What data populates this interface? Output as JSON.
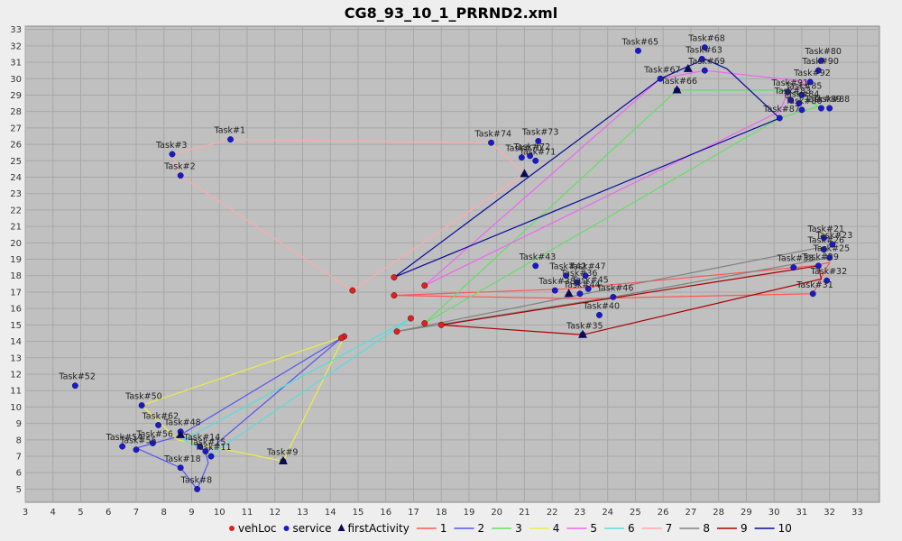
{
  "chart_data": {
    "type": "scatter",
    "title": "CG8_93_10_1_PRRND2.xml",
    "xlim": [
      3,
      33.8
    ],
    "ylim": [
      4.2,
      33.2
    ],
    "xticks": [
      3,
      4,
      5,
      6,
      7,
      8,
      9,
      10,
      11,
      12,
      13,
      14,
      15,
      16,
      17,
      18,
      19,
      20,
      21,
      22,
      23,
      24,
      25,
      26,
      27,
      28,
      29,
      30,
      31,
      32,
      33
    ],
    "yticks": [
      5,
      6,
      7,
      8,
      9,
      10,
      11,
      12,
      13,
      14,
      15,
      16,
      17,
      18,
      19,
      20,
      21,
      22,
      23,
      24,
      25,
      26,
      27,
      28,
      29,
      30,
      31,
      32,
      33
    ],
    "grid": true,
    "legend_position": "bottom",
    "legend": [
      {
        "name": "vehLoc",
        "kind": "dot",
        "color": "#dd2222"
      },
      {
        "name": "service",
        "kind": "dot",
        "color": "#1a1acc"
      },
      {
        "name": "firstActivity",
        "kind": "triangle",
        "color": "#0a0a55"
      },
      {
        "name": "1",
        "kind": "line",
        "color": "#ff5555"
      },
      {
        "name": "2",
        "kind": "line",
        "color": "#5555ee"
      },
      {
        "name": "3",
        "kind": "line",
        "color": "#66dd66"
      },
      {
        "name": "4",
        "kind": "line",
        "color": "#eeee44"
      },
      {
        "name": "5",
        "kind": "line",
        "color": "#ee66ee"
      },
      {
        "name": "6",
        "kind": "line",
        "color": "#55dddd"
      },
      {
        "name": "7",
        "kind": "line",
        "color": "#ffaaaa"
      },
      {
        "name": "8",
        "kind": "line",
        "color": "#808080"
      },
      {
        "name": "9",
        "kind": "line",
        "color": "#aa0000"
      },
      {
        "name": "10",
        "kind": "line",
        "color": "#0a0a99"
      }
    ],
    "vehicle_locations": [
      [
        14.8,
        17.1
      ],
      [
        16.3,
        17.9
      ],
      [
        16.3,
        16.8
      ],
      [
        17.4,
        17.4
      ],
      [
        16.9,
        15.4
      ],
      [
        17.4,
        15.1
      ],
      [
        18.0,
        15.0
      ],
      [
        16.4,
        14.6
      ],
      [
        14.5,
        14.3
      ],
      [
        14.4,
        14.2
      ]
    ],
    "first_activities": [
      [
        21.0,
        24.2
      ],
      [
        26.9,
        30.6
      ],
      [
        26.5,
        29.3
      ],
      [
        22.6,
        16.9
      ],
      [
        23.1,
        14.4
      ],
      [
        8.6,
        8.3
      ],
      [
        12.3,
        6.7
      ]
    ],
    "service_points": [
      {
        "label": "Task#1",
        "x": 10.4,
        "y": 26.3
      },
      {
        "label": "Task#3",
        "x": 8.3,
        "y": 25.4
      },
      {
        "label": "Task#2",
        "x": 8.6,
        "y": 24.1
      },
      {
        "label": "Task#74",
        "x": 19.8,
        "y": 26.1
      },
      {
        "label": "Task#73",
        "x": 21.5,
        "y": 26.2
      },
      {
        "label": "Task#72",
        "x": 21.2,
        "y": 25.3
      },
      {
        "label": "Task#71",
        "x": 21.4,
        "y": 25.0
      },
      {
        "label": "Task#70",
        "x": 20.9,
        "y": 25.2
      },
      {
        "label": "Task#65",
        "x": 25.1,
        "y": 31.7
      },
      {
        "label": "Task#68",
        "x": 27.5,
        "y": 31.9
      },
      {
        "label": "Task#63",
        "x": 27.4,
        "y": 31.2
      },
      {
        "label": "Task#69",
        "x": 27.5,
        "y": 30.5
      },
      {
        "label": "Task#67",
        "x": 25.9,
        "y": 30.0
      },
      {
        "label": "Task#66",
        "x": 26.5,
        "y": 29.3
      },
      {
        "label": "Task#80",
        "x": 31.7,
        "y": 31.1
      },
      {
        "label": "Task#90",
        "x": 31.6,
        "y": 30.5
      },
      {
        "label": "Task#92",
        "x": 31.3,
        "y": 29.8
      },
      {
        "label": "Task#91",
        "x": 30.5,
        "y": 29.2
      },
      {
        "label": "Task#85",
        "x": 31.0,
        "y": 29.0
      },
      {
        "label": "Task#83",
        "x": 30.6,
        "y": 28.7
      },
      {
        "label": "Task#84",
        "x": 30.9,
        "y": 28.5
      },
      {
        "label": "Task#88",
        "x": 32.0,
        "y": 28.2
      },
      {
        "label": "Task#89",
        "x": 31.7,
        "y": 28.2
      },
      {
        "label": "Task#86",
        "x": 31.0,
        "y": 28.1
      },
      {
        "label": "Task#87",
        "x": 30.2,
        "y": 27.6
      },
      {
        "label": "Task#43",
        "x": 21.4,
        "y": 18.6
      },
      {
        "label": "Task#42",
        "x": 22.5,
        "y": 18.0
      },
      {
        "label": "Task#47",
        "x": 23.2,
        "y": 18.0
      },
      {
        "label": "Task#36",
        "x": 22.9,
        "y": 17.6
      },
      {
        "label": "Task#45",
        "x": 23.3,
        "y": 17.2
      },
      {
        "label": "Task#38",
        "x": 22.1,
        "y": 17.1
      },
      {
        "label": "Task#44",
        "x": 23.0,
        "y": 16.9
      },
      {
        "label": "Task#46",
        "x": 24.2,
        "y": 16.7
      },
      {
        "label": "Task#40",
        "x": 23.7,
        "y": 15.6
      },
      {
        "label": "Task#35",
        "x": 23.1,
        "y": 14.4
      },
      {
        "label": "Task#21",
        "x": 31.8,
        "y": 20.3
      },
      {
        "label": "Task#23",
        "x": 32.1,
        "y": 19.9
      },
      {
        "label": "Task#26",
        "x": 31.8,
        "y": 19.6
      },
      {
        "label": "Task#25",
        "x": 32.0,
        "y": 19.1
      },
      {
        "label": "Task#29",
        "x": 31.6,
        "y": 18.6
      },
      {
        "label": "Task#33",
        "x": 30.7,
        "y": 18.5
      },
      {
        "label": "Task#32",
        "x": 31.9,
        "y": 17.7
      },
      {
        "label": "Task#31",
        "x": 31.4,
        "y": 16.9
      },
      {
        "label": "Task#52",
        "x": 4.8,
        "y": 11.3
      },
      {
        "label": "Task#50",
        "x": 7.2,
        "y": 10.1
      },
      {
        "label": "Task#62",
        "x": 7.8,
        "y": 8.9
      },
      {
        "label": "Task#48",
        "x": 8.6,
        "y": 8.5
      },
      {
        "label": "Task#56",
        "x": 7.6,
        "y": 7.8
      },
      {
        "label": "Task#55",
        "x": 7.0,
        "y": 7.4
      },
      {
        "label": "Task#54",
        "x": 6.5,
        "y": 7.6
      },
      {
        "label": "Task#14",
        "x": 9.3,
        "y": 7.6
      },
      {
        "label": "Task#15",
        "x": 9.5,
        "y": 7.3
      },
      {
        "label": "Task#11",
        "x": 9.7,
        "y": 7.0
      },
      {
        "label": "Task#18",
        "x": 8.6,
        "y": 6.3
      },
      {
        "label": "Task#8",
        "x": 9.2,
        "y": 5.0
      },
      {
        "label": "Task#9",
        "x": 12.3,
        "y": 6.7
      }
    ],
    "routes": [
      {
        "name": "1",
        "color": "#ff5555",
        "points": [
          [
            16.3,
            16.8
          ],
          [
            22.6,
            17.2
          ],
          [
            31.4,
            18.6
          ],
          [
            32.0,
            18.8
          ],
          [
            31.4,
            16.9
          ],
          [
            23.1,
            16.6
          ],
          [
            16.3,
            16.8
          ]
        ]
      },
      {
        "name": "2",
        "color": "#5555ee",
        "points": [
          [
            14.4,
            14.2
          ],
          [
            8.5,
            8.2
          ],
          [
            7.0,
            7.5
          ],
          [
            8.6,
            6.3
          ],
          [
            9.2,
            5.0
          ],
          [
            9.6,
            6.6
          ],
          [
            9.5,
            7.2
          ],
          [
            14.4,
            14.2
          ]
        ]
      },
      {
        "name": "3",
        "color": "#66dd66",
        "points": [
          [
            17.4,
            15.1
          ],
          [
            26.5,
            29.3
          ],
          [
            30.5,
            29.3
          ],
          [
            31.6,
            28.3
          ],
          [
            30.2,
            27.6
          ],
          [
            17.4,
            15.1
          ]
        ]
      },
      {
        "name": "4",
        "color": "#eeee44",
        "points": [
          [
            14.5,
            14.3
          ],
          [
            7.2,
            10.1
          ],
          [
            8.5,
            8.0
          ],
          [
            12.3,
            6.7
          ],
          [
            14.5,
            14.3
          ]
        ]
      },
      {
        "name": "5",
        "color": "#ee66ee",
        "points": [
          [
            17.4,
            17.4
          ],
          [
            25.9,
            30.0
          ],
          [
            27.5,
            30.5
          ],
          [
            31.3,
            29.8
          ],
          [
            30.5,
            29.2
          ],
          [
            30.2,
            28.0
          ],
          [
            17.4,
            17.4
          ]
        ]
      },
      {
        "name": "6",
        "color": "#55dddd",
        "points": [
          [
            16.9,
            15.4
          ],
          [
            8.7,
            8.0
          ],
          [
            9.3,
            7.5
          ],
          [
            9.7,
            7.1
          ],
          [
            16.9,
            15.4
          ]
        ]
      },
      {
        "name": "7",
        "color": "#ffaaaa",
        "points": [
          [
            14.8,
            17.1
          ],
          [
            8.6,
            24.1
          ],
          [
            8.3,
            25.4
          ],
          [
            10.4,
            26.3
          ],
          [
            19.8,
            26.1
          ],
          [
            21.0,
            24.2
          ],
          [
            14.8,
            17.1
          ]
        ]
      },
      {
        "name": "8",
        "color": "#808080",
        "points": [
          [
            16.4,
            14.6
          ],
          [
            23.2,
            16.9
          ],
          [
            31.6,
            19.7
          ],
          [
            32.0,
            19.1
          ],
          [
            24.2,
            16.7
          ],
          [
            16.4,
            14.6
          ]
        ]
      },
      {
        "name": "9",
        "color": "#aa0000",
        "points": [
          [
            18.0,
            15.0
          ],
          [
            23.1,
            14.4
          ],
          [
            31.7,
            17.8
          ],
          [
            31.6,
            18.6
          ],
          [
            18.0,
            15.0
          ]
        ]
      },
      {
        "name": "10",
        "color": "#0a0a99",
        "points": [
          [
            16.3,
            17.9
          ],
          [
            25.9,
            30.0
          ],
          [
            27.5,
            31.2
          ],
          [
            28.3,
            30.6
          ],
          [
            30.2,
            27.6
          ],
          [
            16.3,
            17.9
          ]
        ]
      }
    ]
  }
}
